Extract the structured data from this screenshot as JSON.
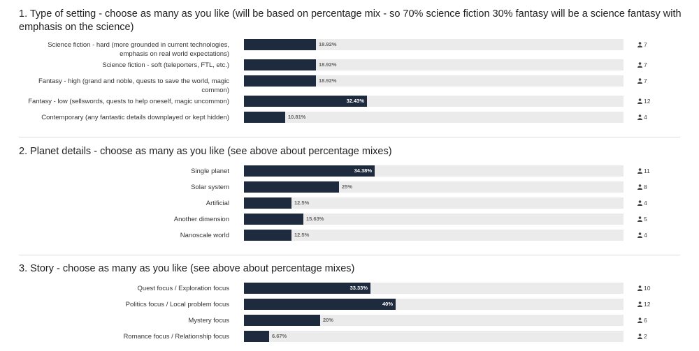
{
  "questions": [
    {
      "title": "1. Type of setting - choose as many as you like (will be based on percentage mix - so 70% science fiction 30% fantasy will be a science fantasy with emphasis on the science)",
      "options": [
        {
          "label": "Science fiction - hard (more grounded in current technologies, emphasis on real world expectations)",
          "percent": 18.92,
          "percent_label": "18.92%",
          "count": "7"
        },
        {
          "label": "Science fiction - soft (teleporters, FTL, etc.)",
          "percent": 18.92,
          "percent_label": "18.92%",
          "count": "7"
        },
        {
          "label": "Fantasy - high (grand and noble, quests to save the world, magic common)",
          "percent": 18.92,
          "percent_label": "18.92%",
          "count": "7"
        },
        {
          "label": "Fantasy - low (sellswords, quests to help oneself, magic uncommon)",
          "percent": 32.43,
          "percent_label": "32.43%",
          "count": "12"
        },
        {
          "label": "Contemporary (any fantastic details downplayed or kept hidden)",
          "percent": 10.81,
          "percent_label": "10.81%",
          "count": "4"
        }
      ]
    },
    {
      "title": "2. Planet details - choose as many as you like (see above about percentage mixes)",
      "options": [
        {
          "label": "Single planet",
          "percent": 34.38,
          "percent_label": "34.38%",
          "count": "11"
        },
        {
          "label": "Solar system",
          "percent": 25,
          "percent_label": "25%",
          "count": "8"
        },
        {
          "label": "Artificial",
          "percent": 12.5,
          "percent_label": "12.5%",
          "count": "4"
        },
        {
          "label": "Another dimension",
          "percent": 15.63,
          "percent_label": "15.63%",
          "count": "5"
        },
        {
          "label": "Nanoscale world",
          "percent": 12.5,
          "percent_label": "12.5%",
          "count": "4"
        }
      ]
    },
    {
      "title": "3. Story - choose as many as you like (see above about percentage mixes)",
      "options": [
        {
          "label": "Quest focus / Exploration focus",
          "percent": 33.33,
          "percent_label": "33.33%",
          "count": "10"
        },
        {
          "label": "Politics focus / Local problem focus",
          "percent": 40,
          "percent_label": "40%",
          "count": "12"
        },
        {
          "label": "Mystery focus",
          "percent": 20,
          "percent_label": "20%",
          "count": "6"
        },
        {
          "label": "Romance focus / Relationship focus",
          "percent": 6.67,
          "percent_label": "6.67%",
          "count": "2"
        }
      ]
    }
  ],
  "colors": {
    "bar_fill": "#1e2a3d",
    "bar_track": "#ebebeb"
  },
  "icons": {
    "count_icon": "user-icon"
  }
}
